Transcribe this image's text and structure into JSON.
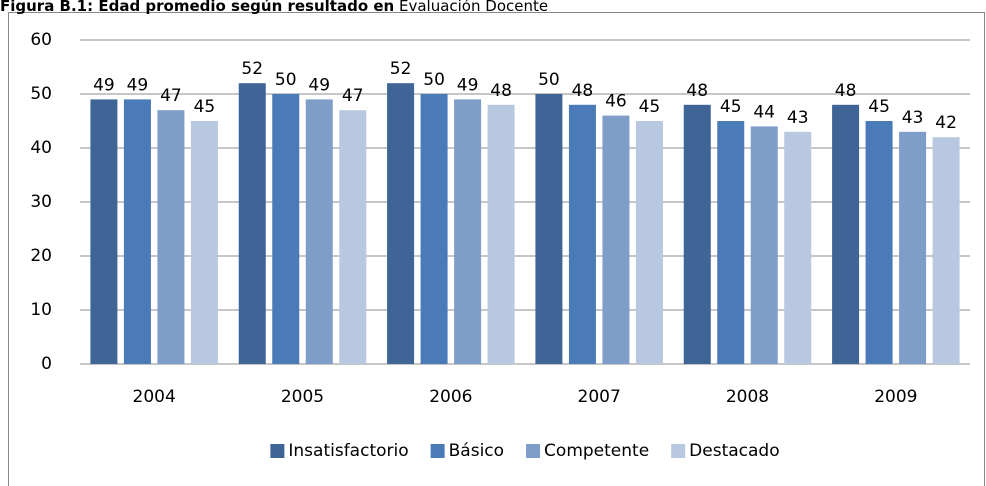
{
  "chart_data": {
    "type": "bar",
    "title": "Figura B.1: Edad promedio según resultado en",
    "subtitle": "Evaluación Docente",
    "categories": [
      "2004",
      "2005",
      "2006",
      "2007",
      "2008",
      "2009"
    ],
    "series": [
      {
        "name": "Insatisfactorio",
        "color": "#3f6496",
        "values": [
          49,
          52,
          52,
          50,
          48,
          48
        ]
      },
      {
        "name": "Básico",
        "color": "#4a7ab8",
        "values": [
          49,
          50,
          50,
          48,
          45,
          45
        ]
      },
      {
        "name": "Competente",
        "color": "#7f9dc9",
        "values": [
          47,
          49,
          49,
          46,
          44,
          43
        ]
      },
      {
        "name": "Destacado",
        "color": "#b8c8e0",
        "values": [
          45,
          47,
          48,
          45,
          43,
          42
        ]
      }
    ],
    "ylim": [
      0,
      60
    ],
    "yticks": [
      0,
      10,
      20,
      30,
      40,
      50,
      60
    ],
    "grid": true,
    "legend": "bottom"
  }
}
